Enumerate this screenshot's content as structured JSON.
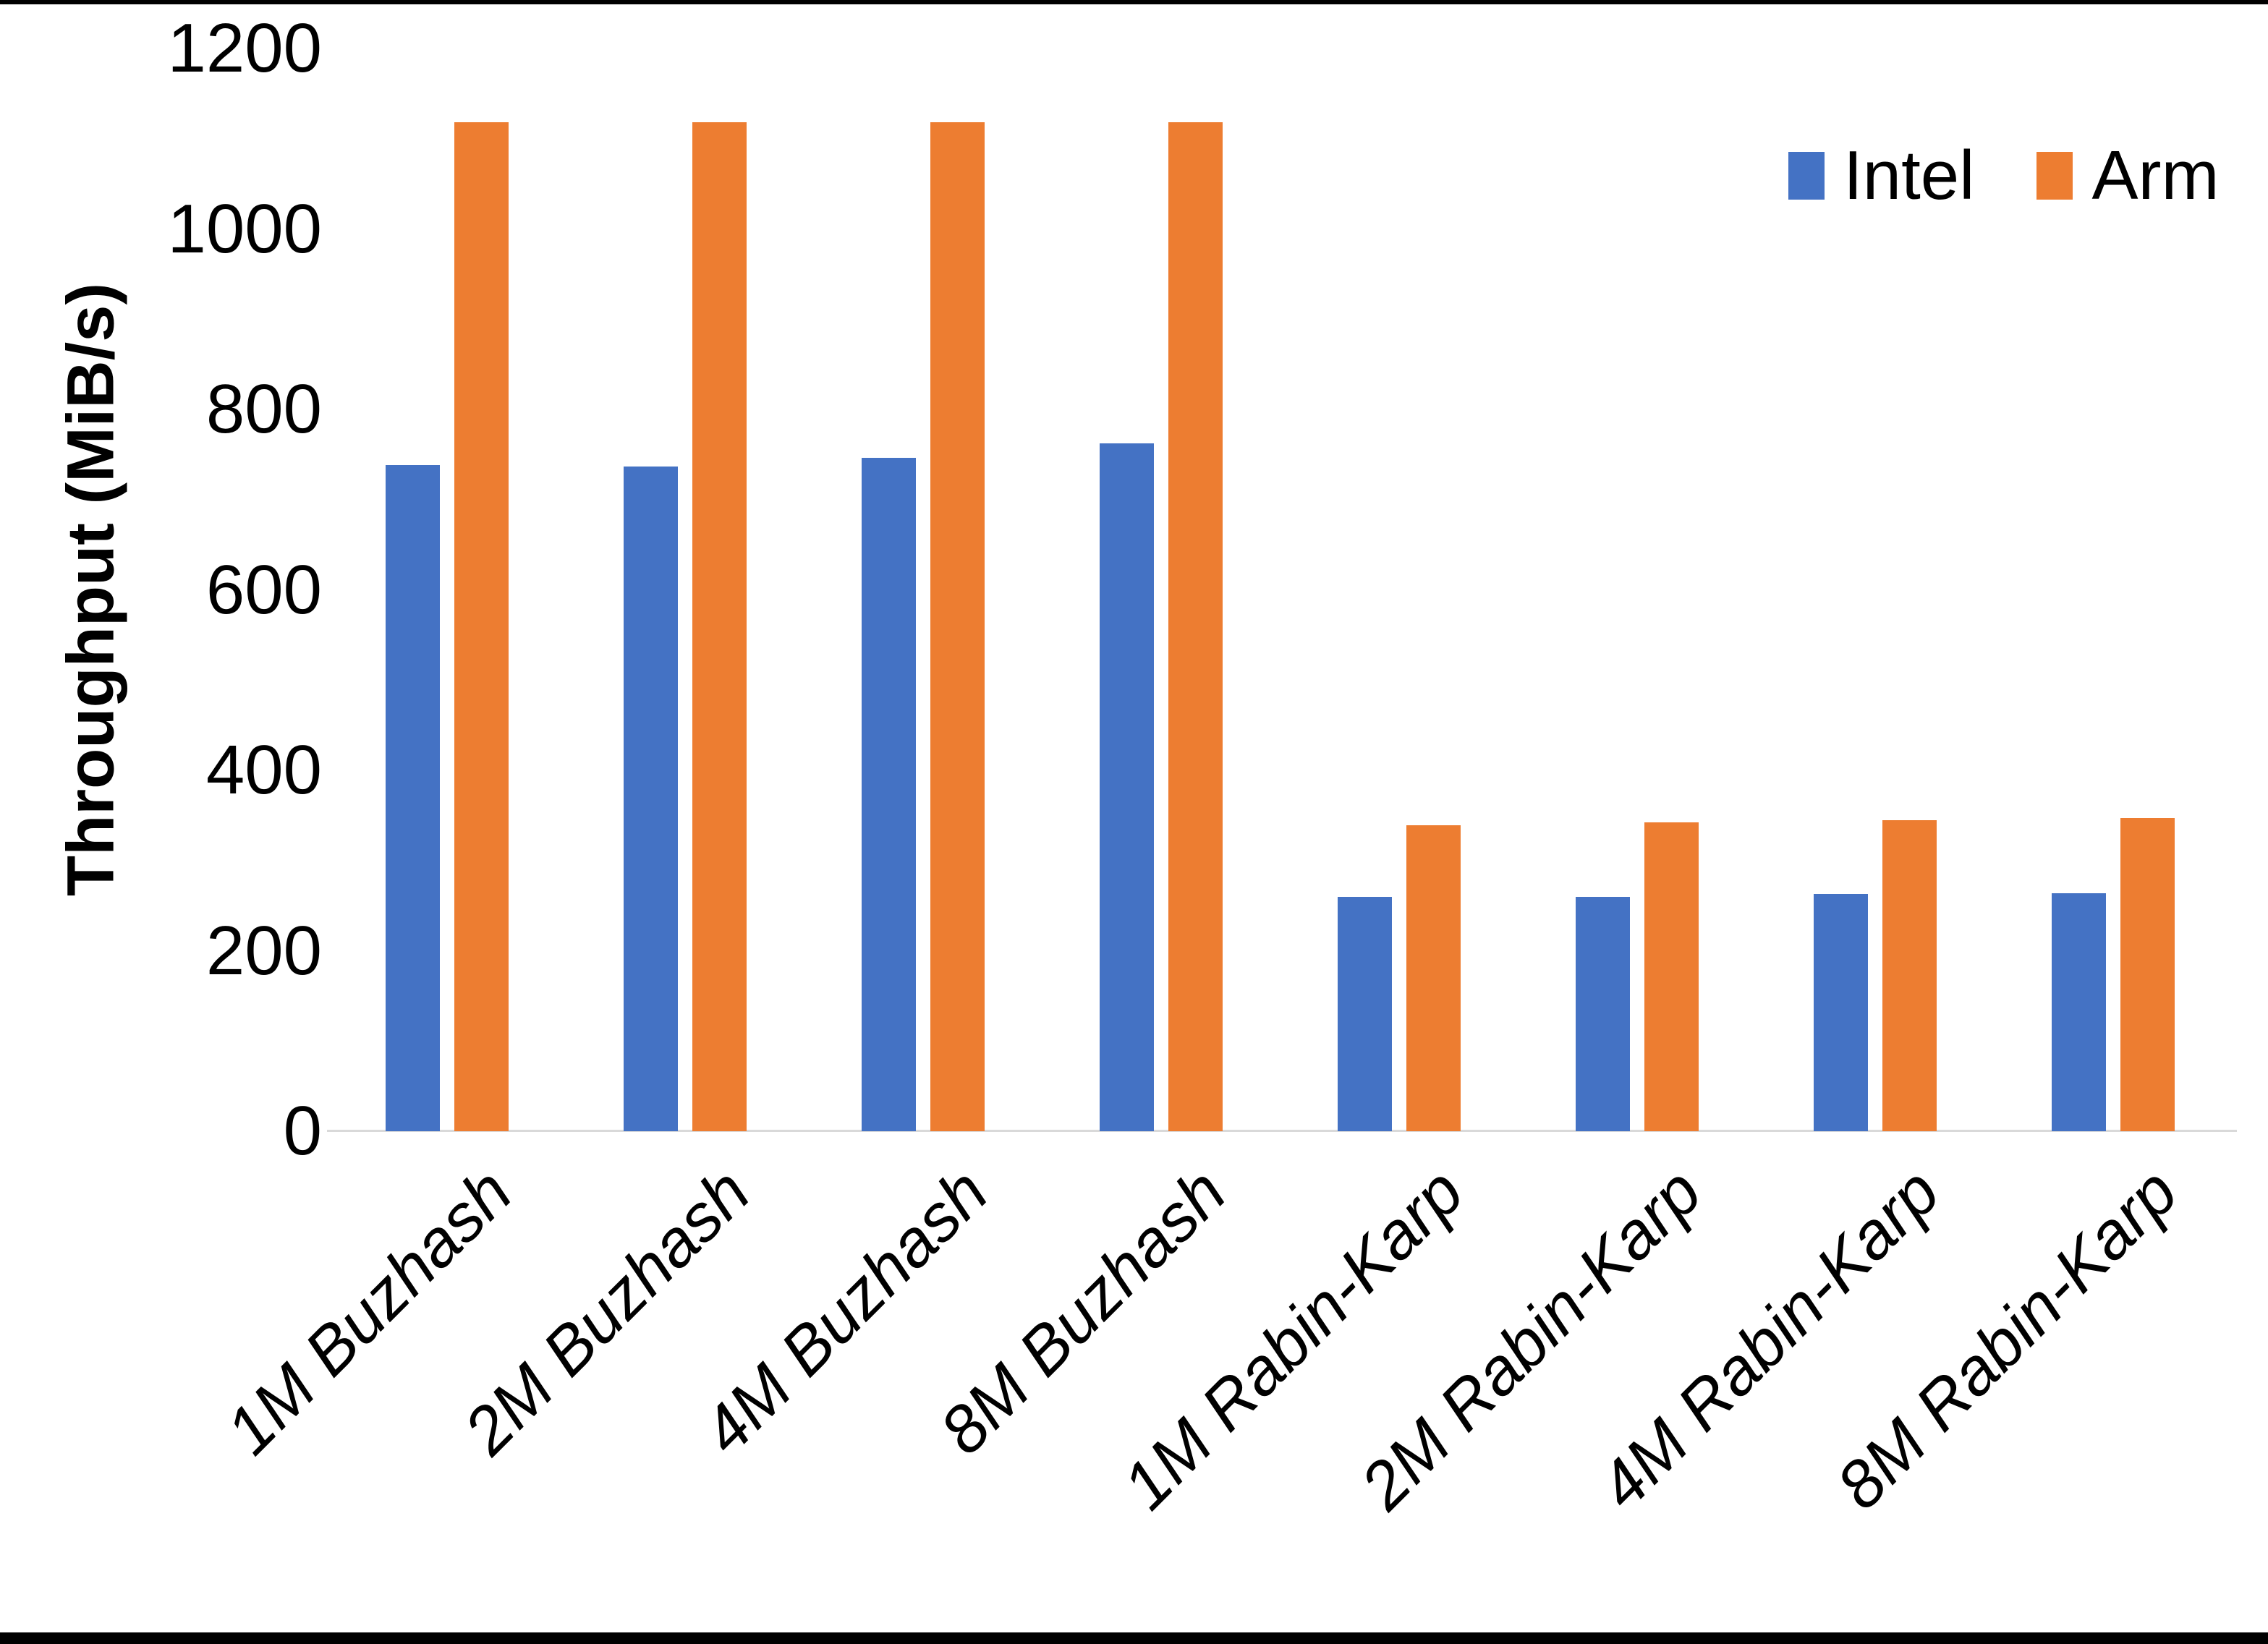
{
  "chart_data": {
    "type": "bar",
    "title": "",
    "xlabel": "",
    "ylabel": "Throughput (MiB/s)",
    "ylim": [
      0,
      1200
    ],
    "yticks": [
      0,
      200,
      400,
      600,
      800,
      1000,
      1200
    ],
    "grid": false,
    "legend_position": "top-right",
    "categories": [
      "1M Buzhash",
      "2M Buzhash",
      "4M Buzhash",
      "8M Buzhash",
      "1M Rabin-Karp",
      "2M Rabin-Karp",
      "4M Rabin-Karp",
      "8M Rabin-Karp"
    ],
    "series": [
      {
        "name": "Intel",
        "color": "#4472C4",
        "values": [
          738,
          737,
          746,
          762,
          260,
          260,
          263,
          264
        ]
      },
      {
        "name": "Arm",
        "color": "#ED7D31",
        "values": [
          1118,
          1118,
          1118,
          1118,
          339,
          342,
          345,
          347
        ]
      }
    ]
  },
  "colors": {
    "background": "#ffffff",
    "axis_line": "#d9d9d9",
    "text": "#000000",
    "border": "#000000"
  }
}
